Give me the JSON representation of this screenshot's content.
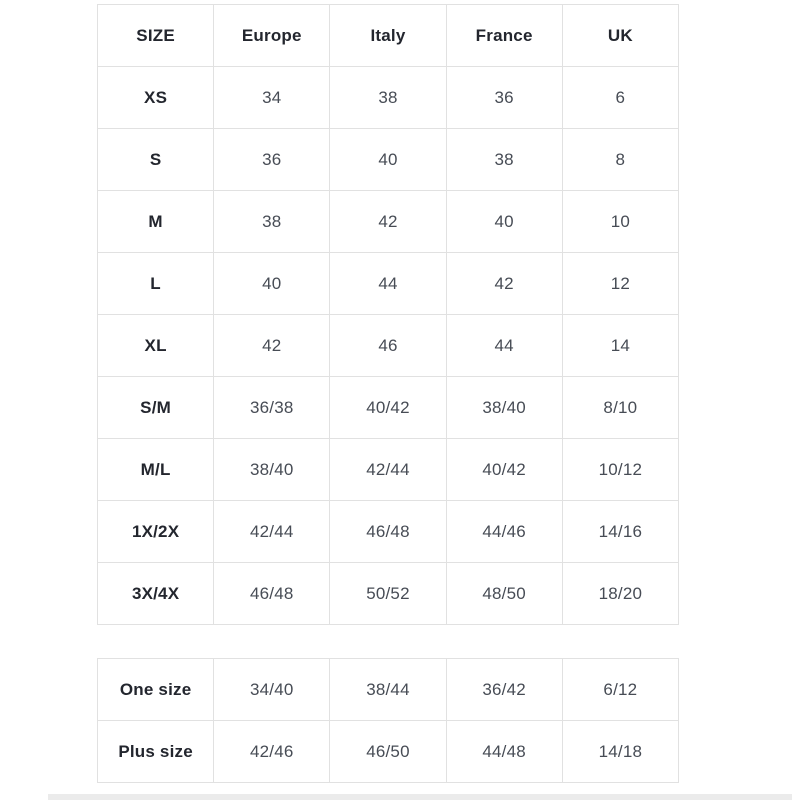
{
  "colors": {
    "border": "#e1e1e1",
    "header_text": "#23262e",
    "label_text": "#23262e",
    "value_text": "#474c55",
    "background": "#ffffff",
    "bottom_divider": "#ebebeb"
  },
  "size_chart": {
    "headers": [
      "SIZE",
      "Europe",
      "Italy",
      "France",
      "UK"
    ],
    "main_rows": [
      {
        "label": "XS",
        "values": [
          "34",
          "38",
          "36",
          "6"
        ]
      },
      {
        "label": "S",
        "values": [
          "36",
          "40",
          "38",
          "8"
        ]
      },
      {
        "label": "M",
        "values": [
          "38",
          "42",
          "40",
          "10"
        ]
      },
      {
        "label": "L",
        "values": [
          "40",
          "44",
          "42",
          "12"
        ]
      },
      {
        "label": "XL",
        "values": [
          "42",
          "46",
          "44",
          "14"
        ]
      },
      {
        "label": "S/M",
        "values": [
          "36/38",
          "40/42",
          "38/40",
          "8/10"
        ]
      },
      {
        "label": "M/L",
        "values": [
          "38/40",
          "42/44",
          "40/42",
          "10/12"
        ]
      },
      {
        "label": "1X/2X",
        "values": [
          "42/44",
          "46/48",
          "44/46",
          "14/16"
        ]
      },
      {
        "label": "3X/4X",
        "values": [
          "46/48",
          "50/52",
          "48/50",
          "18/20"
        ]
      }
    ],
    "extra_rows": [
      {
        "label": "One size",
        "values": [
          "34/40",
          "38/44",
          "36/42",
          "6/12"
        ]
      },
      {
        "label": "Plus size",
        "values": [
          "42/46",
          "46/50",
          "44/48",
          "14/18"
        ]
      }
    ]
  }
}
